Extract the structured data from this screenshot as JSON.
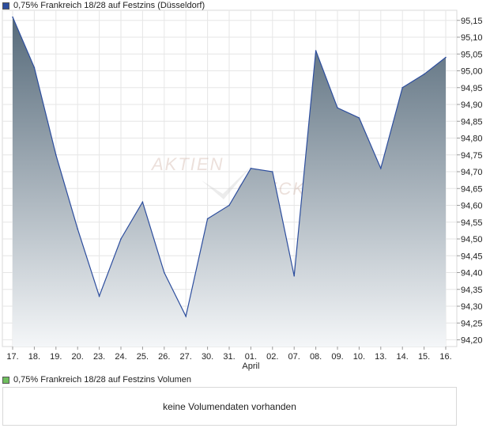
{
  "legend": {
    "price_label": "0,75% Frankreich 18/28 auf Festzins (Düsseldorf)",
    "price_color": "#2d4e9e",
    "volume_label": "0,75% Frankreich 18/28 auf Festzins Volumen",
    "volume_color": "#6fbf5e"
  },
  "watermark": {
    "top": "AKTIEN",
    "bottom": "CHECK"
  },
  "volume": {
    "message": "keine Volumendaten vorhanden"
  },
  "chart_data": {
    "type": "area",
    "categories": [
      "17.",
      "18.",
      "19.",
      "20.",
      "23.",
      "24.",
      "25.",
      "26.",
      "27.",
      "30.",
      "31.",
      "01.",
      "02.",
      "07.",
      "08.",
      "09.",
      "10.",
      "13.",
      "14.",
      "15.",
      "16."
    ],
    "month_label": {
      "at": "01.",
      "text": "April"
    },
    "series": [
      {
        "values": [
          95.16,
          95.01,
          94.75,
          94.53,
          94.33,
          94.5,
          94.61,
          94.4,
          94.27,
          94.56,
          94.6,
          94.71,
          94.7,
          94.39,
          95.06,
          94.89,
          94.86,
          94.71,
          94.95,
          94.99,
          95.04
        ]
      }
    ],
    "y_ticks": [
      "95,15",
      "95,10",
      "95,05",
      "95,00",
      "94,95",
      "94,90",
      "94,85",
      "94,80",
      "94,75",
      "94,70",
      "94,65",
      "94,60",
      "94,55",
      "94,50",
      "94,45",
      "94,40",
      "94,35",
      "94,30",
      "94,25",
      "94,20"
    ],
    "ylim": [
      94.18,
      95.18
    ],
    "grid": true,
    "line_color": "#2d4e9e",
    "fill_top_color": "#566a7a",
    "fill_bottom_color": "#f4f6f8"
  }
}
